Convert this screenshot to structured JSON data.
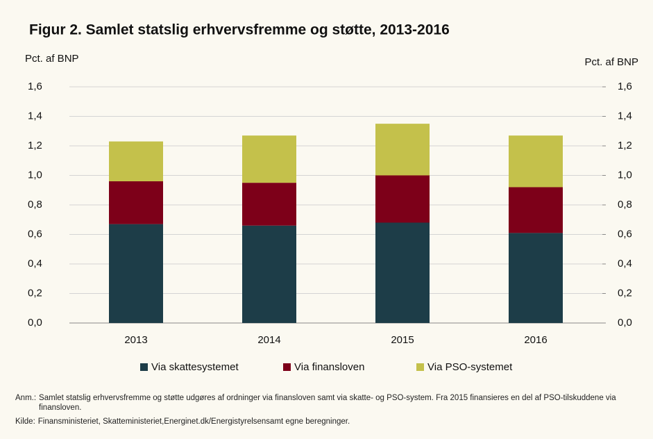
{
  "chart_data": {
    "type": "stacked_bar",
    "title": "Figur 2. Samlet statslig erhvervsfremme og støtte, 2013-2016",
    "ylabel": "Pct. af BNP",
    "y2label": "Pct. af BNP",
    "categories": [
      "2013",
      "2014",
      "2015",
      "2016"
    ],
    "series": [
      {
        "name": "Via skattesystemet",
        "color": "#1d3d48",
        "values": [
          0.67,
          0.66,
          0.68,
          0.61
        ]
      },
      {
        "name": "Via finansloven",
        "color": "#7d0019",
        "values": [
          0.29,
          0.29,
          0.32,
          0.31
        ]
      },
      {
        "name": "Via PSO-systemet",
        "color": "#c4c14b",
        "values": [
          0.27,
          0.32,
          0.35,
          0.35
        ]
      }
    ],
    "ylim": [
      0,
      1.6
    ],
    "yticks": [
      {
        "value": 0,
        "label": "0,0"
      },
      {
        "value": 0.2,
        "label": "0,2"
      },
      {
        "value": 0.4,
        "label": "0,4"
      },
      {
        "value": 0.6,
        "label": "0,6"
      },
      {
        "value": 0.8,
        "label": "0,8"
      },
      {
        "value": 1.0,
        "label": "1,0"
      },
      {
        "value": 1.2,
        "label": "1,2"
      },
      {
        "value": 1.4,
        "label": "1,4"
      },
      {
        "value": 1.6,
        "label": "1,6"
      }
    ],
    "y2lim": [
      0,
      1.6
    ],
    "y2ticks": [
      {
        "value": 0,
        "label": "0,0"
      },
      {
        "value": 0.2,
        "label": "0,2"
      },
      {
        "value": 0.4,
        "label": "0,4"
      },
      {
        "value": 0.6,
        "label": "0,6"
      },
      {
        "value": 0.8,
        "label": "0,8"
      },
      {
        "value": 1.0,
        "label": "1,0"
      },
      {
        "value": 1.2,
        "label": "1,2"
      },
      {
        "value": 1.4,
        "label": "1,4"
      },
      {
        "value": 1.6,
        "label": "1,6"
      }
    ],
    "grid": true,
    "legend": "bottom",
    "note_label": "Anm.:",
    "note": "Samlet statslig erhvervsfremme og støtte udgøres af ordninger via finansloven samt via skatte- og PSO-system. Fra 2015 finansieres en del af PSO-tilskuddene via finansloven.",
    "source_label": "Kilde:",
    "source": "Finansministeriet, Skatteministeriet,Energinet.dk/Energistyrelsensamt egne beregninger."
  }
}
